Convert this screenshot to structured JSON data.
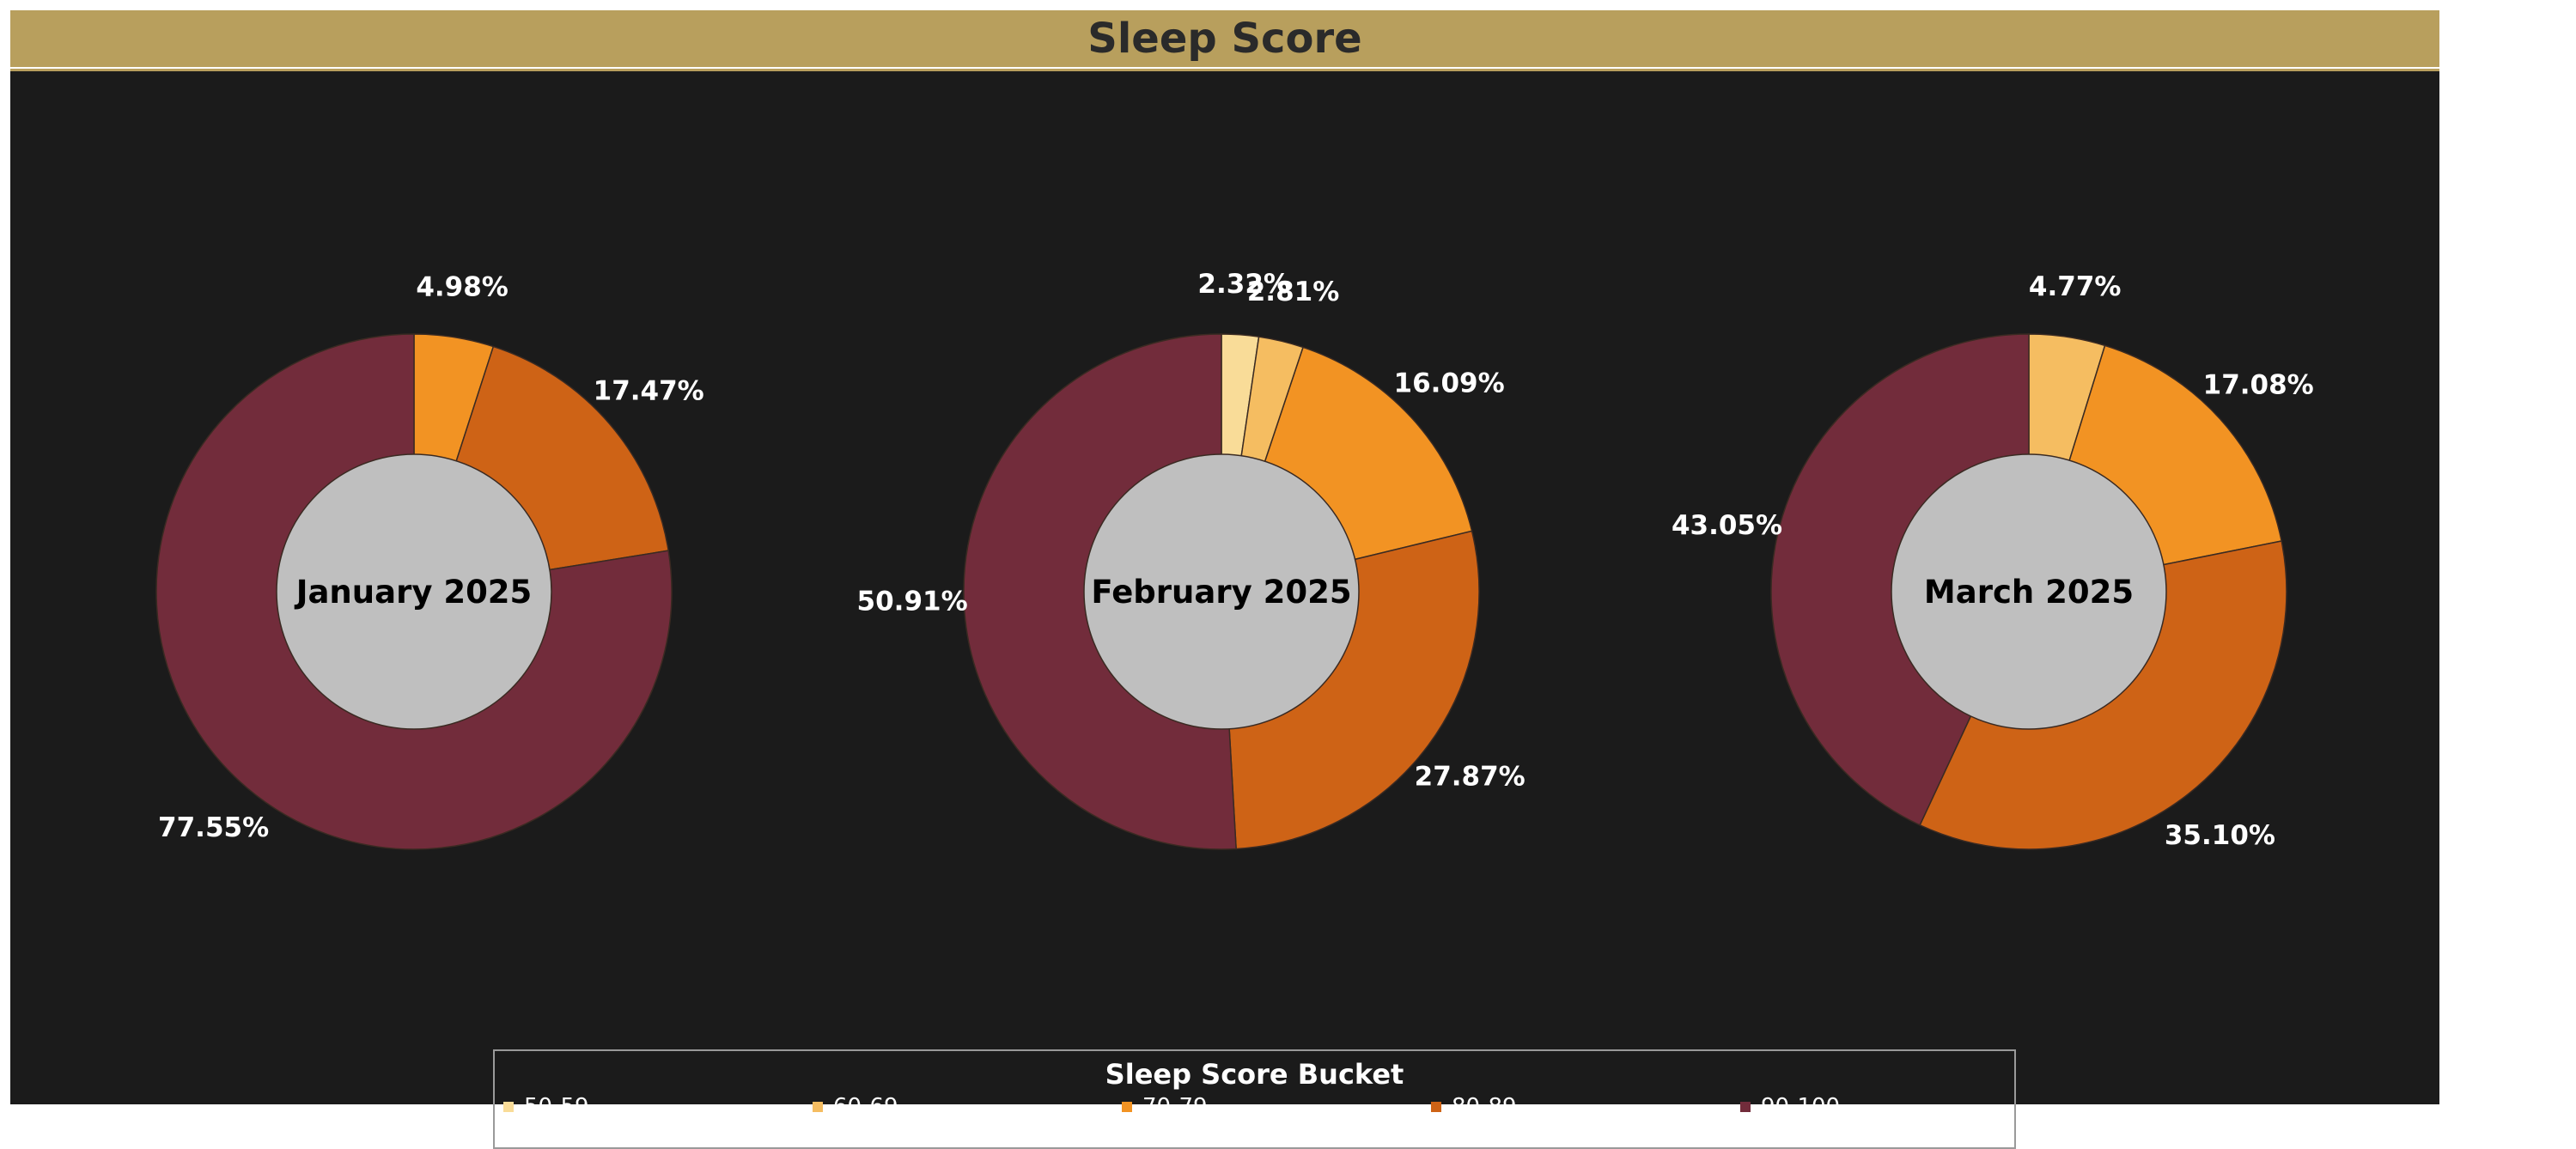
{
  "page": {
    "title": "Sleep Score"
  },
  "legend": {
    "title": "Sleep Score Bucket"
  },
  "colors": {
    "50-59": "#f9dc98",
    "60-69": "#f5bd61",
    "70-79": "#f29323",
    "80-89": "#ce6316",
    "90-100": "#722c3b",
    "hole": "#bfbfbf",
    "background": "#1b1b1b",
    "title_bar": "#b89f5d"
  },
  "chart_data": [
    {
      "type": "pie",
      "title": "January 2025",
      "categories": [
        "50-59",
        "60-69",
        "70-79",
        "80-89",
        "90-100"
      ],
      "values": [
        0,
        0,
        4.98,
        17.47,
        77.55
      ],
      "labels": [
        "",
        "",
        "4.98%",
        "17.47%",
        "77.55%"
      ]
    },
    {
      "type": "pie",
      "title": "February 2025",
      "categories": [
        "50-59",
        "60-69",
        "70-79",
        "80-89",
        "90-100"
      ],
      "values": [
        2.32,
        2.81,
        16.09,
        27.87,
        50.91
      ],
      "labels": [
        "2.32%",
        "2.81%",
        "16.09%",
        "27.87%",
        "50.91%"
      ]
    },
    {
      "type": "pie",
      "title": "March 2025",
      "categories": [
        "50-59",
        "60-69",
        "70-79",
        "80-89",
        "90-100"
      ],
      "values": [
        0,
        4.77,
        17.08,
        35.1,
        43.05
      ],
      "labels": [
        "",
        "4.77%",
        "17.08%",
        "35.10%",
        "43.05%"
      ]
    }
  ]
}
